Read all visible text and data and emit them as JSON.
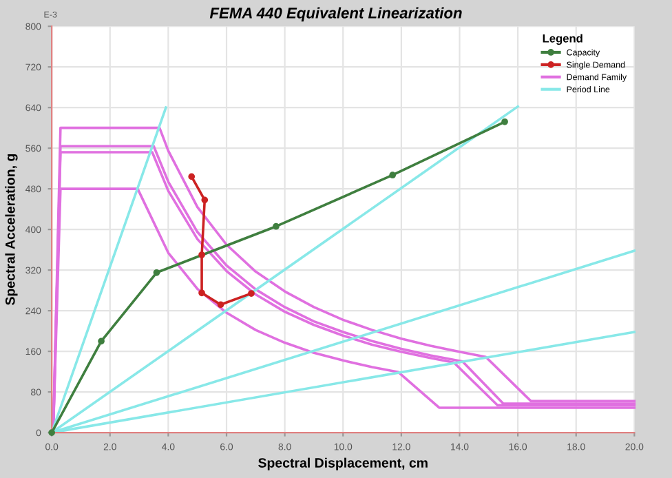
{
  "chart_data": {
    "type": "line",
    "title": "FEMA 440 Equivalent Linearization",
    "xlabel": "Spectral Displacement, cm",
    "ylabel": "Spectral Acceleration, g",
    "legend_title": "Legend",
    "annotations": [
      "E-3"
    ],
    "xlim": [
      0,
      20
    ],
    "xticks": [
      {
        "value": 0,
        "label": "0.0"
      },
      {
        "value": 2,
        "label": "2.0"
      },
      {
        "value": 4,
        "label": "4.0"
      },
      {
        "value": 6,
        "label": "6.0"
      },
      {
        "value": 8,
        "label": "8.0"
      },
      {
        "value": 10,
        "label": "10.0"
      },
      {
        "value": 12,
        "label": "12.0"
      },
      {
        "value": 14,
        "label": "14.0"
      },
      {
        "value": 16,
        "label": "16.0"
      },
      {
        "value": 18,
        "label": "18.0"
      },
      {
        "value": 20,
        "label": "20.0"
      }
    ],
    "ylim": [
      0,
      800
    ],
    "yticks": [
      0,
      80,
      160,
      240,
      320,
      400,
      480,
      560,
      640,
      720,
      800
    ],
    "grid": true,
    "legend": "top right",
    "series": [
      {
        "name": "Capacity",
        "color": "#3f7f3f",
        "marker": "circle",
        "x": [
          0,
          1.7,
          3.6,
          7.7,
          11.7,
          15.55
        ],
        "values": [
          0,
          180,
          315,
          406,
          507,
          612
        ]
      },
      {
        "name": "Single Demand",
        "color": "#cc2222",
        "marker": "circle",
        "x": [
          4.8,
          5.25,
          5.15,
          5.15,
          5.8,
          6.85
        ],
        "values": [
          504,
          458,
          350,
          275,
          252,
          274
        ]
      },
      {
        "name": "Demand Family",
        "color": "#e070e0",
        "marker": "none",
        "x": [
          0.05,
          0.3,
          3.7,
          4,
          5,
          6,
          7,
          8,
          9,
          10,
          11,
          12,
          13,
          14,
          14.9,
          16.45,
          20
        ],
        "values": [
          0,
          600,
          600,
          555,
          444,
          370,
          317,
          278,
          247,
          222,
          202,
          185,
          171,
          159,
          149,
          62,
          62
        ]
      },
      {
        "color": "#e070e0",
        "marker": "none",
        "x": [
          0.05,
          0.3,
          3.5,
          4,
          5,
          6,
          7,
          8,
          9,
          10,
          11,
          12,
          13,
          14.1,
          15.5,
          20
        ],
        "values": [
          0,
          564,
          564,
          494,
          395,
          329,
          282,
          247,
          219,
          198,
          180,
          165,
          152,
          140,
          57,
          57
        ]
      },
      {
        "color": "#e070e0",
        "marker": "none",
        "x": [
          0.05,
          0.3,
          3.45,
          4,
          5,
          6,
          7,
          8,
          9,
          10,
          11,
          12,
          13,
          13.8,
          15.3,
          20
        ],
        "values": [
          0,
          552,
          552,
          476,
          381,
          318,
          272,
          238,
          212,
          191,
          173,
          159,
          147,
          138,
          54,
          54
        ]
      },
      {
        "color": "#e070e0",
        "marker": "none",
        "x": [
          0.05,
          0.3,
          2.95,
          4,
          5,
          6,
          7,
          8,
          9,
          10,
          11,
          11.9,
          13.3,
          20
        ],
        "values": [
          0,
          480,
          480,
          354,
          283,
          236,
          202,
          177,
          157,
          142,
          129,
          119,
          49,
          49
        ]
      },
      {
        "name": "Period Line",
        "color": "#88e8e8",
        "marker": "none",
        "x": [
          0,
          3.92
        ],
        "values": [
          0,
          640
        ]
      },
      {
        "color": "#88e8e8",
        "marker": "none",
        "x": [
          0,
          16
        ],
        "values": [
          0,
          642
        ]
      },
      {
        "color": "#88e8e8",
        "marker": "none",
        "x": [
          0,
          20
        ],
        "values": [
          0,
          358
        ]
      },
      {
        "color": "#88e8e8",
        "marker": "none",
        "x": [
          0,
          20
        ],
        "values": [
          0,
          198
        ]
      }
    ]
  }
}
